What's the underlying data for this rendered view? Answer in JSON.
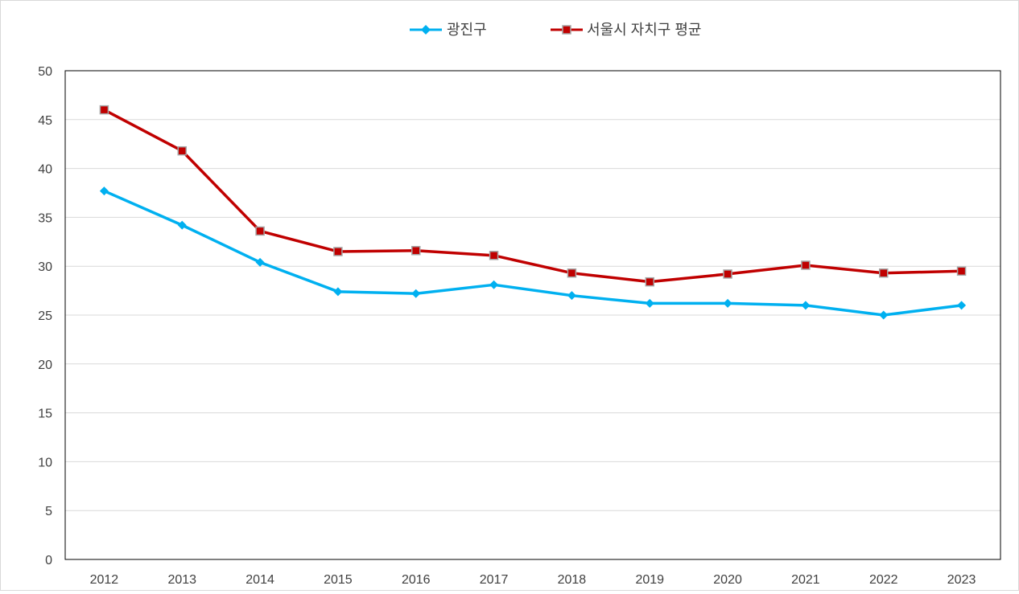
{
  "chart_data": {
    "type": "line",
    "title": "",
    "xlabel": "",
    "ylabel": "",
    "categories": [
      "2012",
      "2013",
      "2014",
      "2015",
      "2016",
      "2017",
      "2018",
      "2019",
      "2020",
      "2021",
      "2022",
      "2023"
    ],
    "ylim": [
      0,
      50
    ],
    "yticks": [
      0,
      5,
      10,
      15,
      20,
      25,
      30,
      35,
      40,
      45,
      50
    ],
    "grid": true,
    "legend_position": "top-center",
    "series": [
      {
        "name": "광진구",
        "color": "#00b0f0",
        "marker": "diamond",
        "values": [
          37.7,
          34.2,
          30.4,
          27.4,
          27.2,
          28.1,
          27.0,
          26.2,
          26.2,
          26.0,
          25.0,
          26.0
        ]
      },
      {
        "name": "서울시 자치구 평균",
        "color": "#c00000",
        "marker": "square",
        "values": [
          46.0,
          41.8,
          33.6,
          31.5,
          31.6,
          31.1,
          29.3,
          28.4,
          29.2,
          30.1,
          29.3,
          29.5
        ]
      }
    ]
  }
}
